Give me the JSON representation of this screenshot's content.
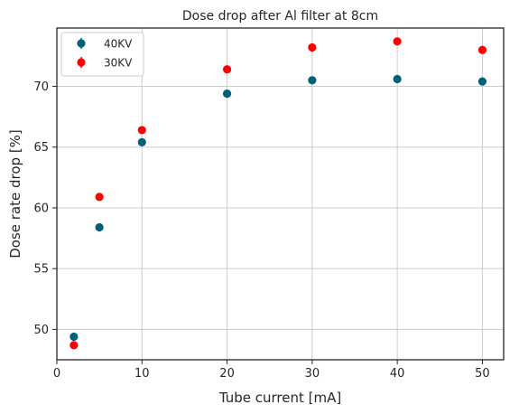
{
  "chart_data": {
    "type": "scatter",
    "title": "Dose drop after Al filter at 8cm",
    "xlabel": "Tube current [mA]",
    "ylabel": "Dose rate drop [%]",
    "xlim": [
      0,
      52.5
    ],
    "ylim": [
      47.5,
      74.8
    ],
    "xticks": [
      0,
      10,
      20,
      30,
      40,
      50
    ],
    "yticks": [
      50,
      55,
      60,
      65,
      70
    ],
    "grid": true,
    "legend_position": "top-left",
    "series": [
      {
        "name": "40KV",
        "color": "#00607a",
        "x": [
          2,
          5,
          10,
          20,
          30,
          40,
          50
        ],
        "y": [
          49.4,
          58.4,
          65.4,
          69.4,
          70.5,
          70.6,
          70.4
        ]
      },
      {
        "name": "30KV",
        "color": "#ff0000",
        "x": [
          2,
          5,
          10,
          20,
          30,
          40,
          50
        ],
        "y": [
          48.7,
          60.9,
          66.4,
          71.4,
          73.2,
          73.7,
          73.0
        ]
      }
    ]
  }
}
